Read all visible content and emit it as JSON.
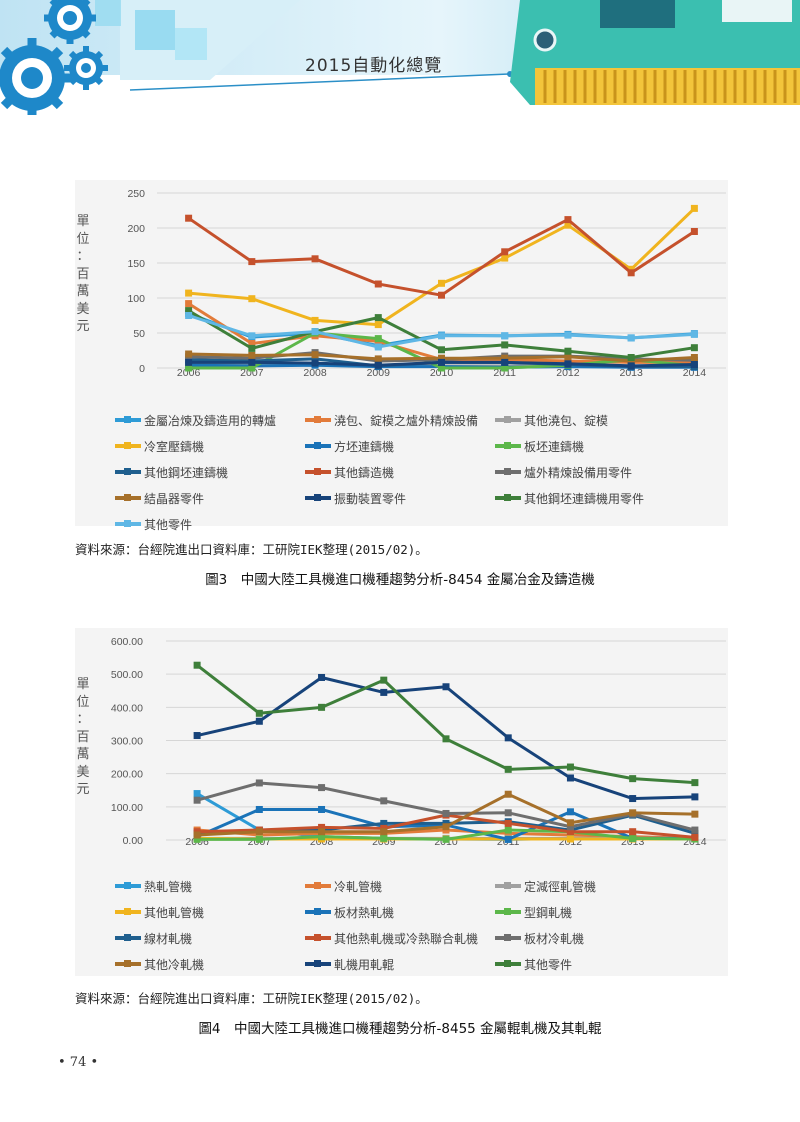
{
  "header": {
    "book_title": "2015自動化總覽"
  },
  "page_number": "• 74 •",
  "figures": [
    {
      "unit_label": "單位：百萬美元",
      "source": "資料來源：台經院進出口資料庫：工研院IEK整理(2015/02)。",
      "caption": "圖3　中國大陸工具機進口機種趨勢分析-8454 金屬冶金及鑄造機",
      "chart_data": {
        "type": "line",
        "x": [
          "2006",
          "2007",
          "2008",
          "2009",
          "2010",
          "2011",
          "2012",
          "2013",
          "2014"
        ],
        "ylim": [
          0,
          250
        ],
        "yticks": [
          "0",
          "50",
          "100",
          "150",
          "200",
          "250"
        ],
        "grid": true,
        "legend_position": "bottom",
        "series": [
          {
            "name": "金屬冶煉及鑄造用的轉爐",
            "color": "#2e9bd6",
            "values": [
              78,
              44,
              50,
              32,
              47,
              46,
              48,
              43,
              49
            ]
          },
          {
            "name": "澆包、錠模之爐外精煉設備",
            "color": "#e27b3a",
            "values": [
              92,
              35,
              46,
              38,
              12,
              12,
              10,
              8,
              8
            ]
          },
          {
            "name": "其他澆包、錠模",
            "color": "#a0a0a0",
            "values": [
              5,
              4,
              6,
              4,
              3,
              3,
              3,
              3,
              3
            ]
          },
          {
            "name": "冷室壓鑄機",
            "color": "#f0b41e",
            "values": [
              107,
              99,
              68,
              62,
              121,
              157,
              204,
              141,
              228
            ]
          },
          {
            "name": "方坯連鑄機",
            "color": "#1a73b8",
            "values": [
              4,
              3,
              4,
              2,
              2,
              1,
              2,
              1,
              1
            ]
          },
          {
            "name": "板坯連鑄機",
            "color": "#5cb74a",
            "values": [
              0,
              0,
              50,
              42,
              0,
              0,
              4,
              12,
              3
            ]
          },
          {
            "name": "其他鋼坯連鑄機",
            "color": "#1f5f8e",
            "values": [
              12,
              10,
              13,
              3,
              8,
              8,
              5,
              2,
              2
            ]
          },
          {
            "name": "其他鑄造機",
            "color": "#c5512c",
            "values": [
              214,
              152,
              156,
              120,
              104,
              166,
              212,
              136,
              195
            ]
          },
          {
            "name": "爐外精煉設備用零件",
            "color": "#6e6e6e",
            "values": [
              16,
              14,
              22,
              10,
              12,
              17,
              17,
              13,
              11
            ]
          },
          {
            "name": "結晶器零件",
            "color": "#a6702a",
            "values": [
              20,
              18,
              19,
              13,
              14,
              14,
              16,
              10,
              15
            ]
          },
          {
            "name": "振動裝置零件",
            "color": "#17437a",
            "values": [
              8,
              8,
              7,
              4,
              8,
              8,
              6,
              3,
              5
            ]
          },
          {
            "name": "其他鋼坯連鑄機用零件",
            "color": "#3e7f3a",
            "values": [
              82,
              28,
              52,
              72,
              26,
              33,
              24,
              15,
              29
            ]
          },
          {
            "name": "其他零件",
            "color": "#5fb7e5",
            "values": [
              75,
              46,
              52,
              30,
              46,
              46,
              47,
              43,
              48
            ]
          }
        ]
      }
    },
    {
      "unit_label": "單位：百萬美元",
      "source": "資料來源：台經院進出口資料庫：工研院IEK整理(2015/02)。",
      "caption": "圖4　中國大陸工具機進口機種趨勢分析-8455 金屬輥軋機及其軋輥",
      "chart_data": {
        "type": "line",
        "x": [
          "2006",
          "2007",
          "2008",
          "2009",
          "2010",
          "2011",
          "2012",
          "2013",
          "2014"
        ],
        "ylim": [
          0,
          600
        ],
        "yticks": [
          "0.00",
          "100.00",
          "200.00",
          "300.00",
          "400.00",
          "500.00",
          "600.00"
        ],
        "grid": true,
        "legend_position": "bottom",
        "series": [
          {
            "name": "熱軋管機",
            "color": "#2e9bd6",
            "values": [
              140,
              30,
              10,
              5,
              3,
              2,
              5,
              5,
              3
            ]
          },
          {
            "name": "冷軋管機",
            "color": "#e27b3a",
            "values": [
              30,
              15,
              20,
              20,
              30,
              20,
              15,
              10,
              5
            ]
          },
          {
            "name": "定減徑軋管機",
            "color": "#a0a0a0",
            "values": [
              5,
              5,
              5,
              5,
              5,
              5,
              5,
              5,
              5
            ]
          },
          {
            "name": "其他軋管機",
            "color": "#f0b41e",
            "values": [
              5,
              3,
              3,
              3,
              3,
              3,
              3,
              3,
              3
            ]
          },
          {
            "name": "板材熱軋機",
            "color": "#1a73b8",
            "values": [
              10,
              92,
              92,
              40,
              45,
              2,
              85,
              5,
              5
            ]
          },
          {
            "name": "型鋼軋機",
            "color": "#5cb74a",
            "values": [
              2,
              2,
              10,
              5,
              2,
              30,
              25,
              5,
              3
            ]
          },
          {
            "name": "線材軋機",
            "color": "#1f5f8e",
            "values": [
              20,
              30,
              30,
              50,
              50,
              55,
              30,
              75,
              20
            ]
          },
          {
            "name": "其他熱軋機或冷熱聯合軋機",
            "color": "#c5512c",
            "values": [
              25,
              30,
              38,
              35,
              75,
              50,
              25,
              25,
              8
            ]
          },
          {
            "name": "板材冷軋機",
            "color": "#6e6e6e",
            "values": [
              120,
              172,
              158,
              118,
              80,
              82,
              40,
              78,
              30
            ]
          },
          {
            "name": "其他冷軋機",
            "color": "#a6702a",
            "values": [
              15,
              25,
              25,
              25,
              40,
              138,
              52,
              82,
              78
            ]
          },
          {
            "name": "軋機用軋輥",
            "color": "#17437a",
            "values": [
              315,
              358,
              490,
              445,
              462,
              308,
              187,
              125,
              130
            ]
          },
          {
            "name": "其他零件",
            "color": "#3e7f3a",
            "values": [
              527,
              382,
              400,
              482,
              305,
              213,
              220,
              185,
              173
            ]
          }
        ]
      }
    }
  ]
}
